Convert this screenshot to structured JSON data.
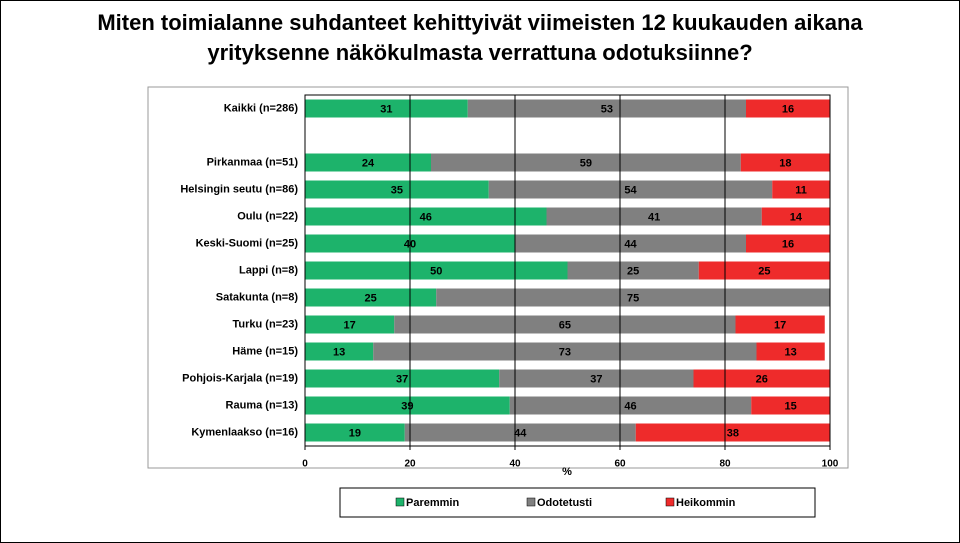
{
  "chart_data": {
    "type": "stacked-barh",
    "title": "Miten toimialanne suhdanteet kehittyivät viimeisten 12 kuukauden aikana yrityksenne näkökulmasta verrattuna odotuksiinne?",
    "x_label": "%",
    "categories": [
      "Kaikki (n=286)",
      null,
      "Pirkanmaa (n=51)",
      "Helsingin seutu (n=86)",
      "Oulu (n=22)",
      "Keski-Suomi (n=25)",
      "Lappi (n=8)",
      "Satakunta (n=8)",
      "Turku (n=23)",
      "Häme (n=15)",
      "Pohjois-Karjala (n=19)",
      "Rauma (n=13)",
      "Kymenlaakso (n=16)"
    ],
    "series": [
      {
        "name": "Paremmin",
        "color": "#1db36b",
        "values": [
          31,
          null,
          24,
          35,
          46,
          40,
          50,
          25,
          17,
          13,
          37,
          39,
          19
        ]
      },
      {
        "name": "Odotetusti",
        "color": "#808080",
        "values": [
          53,
          null,
          59,
          54,
          41,
          44,
          25,
          75,
          65,
          73,
          37,
          46,
          44
        ]
      },
      {
        "name": "Heikommin",
        "color": "#ee2b2b",
        "values": [
          16,
          null,
          18,
          11,
          14,
          16,
          25,
          null,
          17,
          13,
          26,
          15,
          38
        ]
      }
    ],
    "xlim": [
      0,
      100
    ],
    "xticks": [
      0,
      20,
      40,
      60,
      80,
      100
    ],
    "grid": true,
    "legend": "bottom"
  }
}
